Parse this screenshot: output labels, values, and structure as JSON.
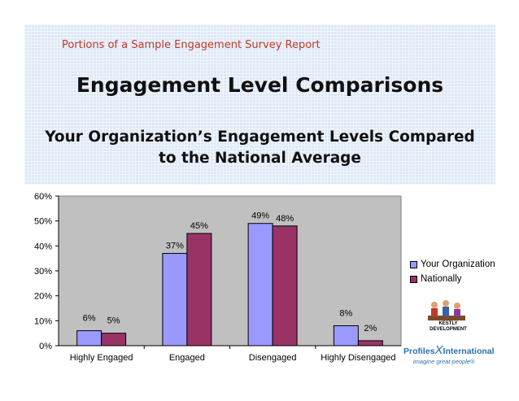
{
  "header": {
    "report_label": "Portions of a Sample Engagement Survey Report"
  },
  "slide": {
    "title": "Engagement Level Comparisons",
    "subtitle_line1": "Your Organization’s Engagement Levels Compared",
    "subtitle_line2": "to the National Average"
  },
  "colors": {
    "your_org": "#9999ff",
    "nationally": "#993366",
    "header_text": "#c0392b",
    "brand_blue": "#2a6fb0"
  },
  "chart_data": {
    "type": "bar",
    "categories": [
      "Highly Engaged",
      "Engaged",
      "Disengaged",
      "Highly Disengaged"
    ],
    "series": [
      {
        "name": "Your Organization",
        "values": [
          6,
          37,
          49,
          8
        ],
        "labels": [
          "6%",
          "37%",
          "49%",
          "8%"
        ],
        "color": "#9999ff"
      },
      {
        "name": "Nationally",
        "values": [
          5,
          45,
          48,
          2
        ],
        "labels": [
          "5%",
          "45%",
          "48%",
          "2%"
        ],
        "color": "#993366"
      }
    ],
    "ylim": [
      0,
      60
    ],
    "yticks": [
      0,
      10,
      20,
      30,
      40,
      50,
      60
    ],
    "ytick_labels": [
      "0%",
      "10%",
      "20%",
      "30%",
      "40%",
      "50%",
      "60%"
    ],
    "xlabel": "",
    "ylabel": "",
    "grid": false,
    "legend_position": "right"
  },
  "logo": {
    "kestly_line1": "KESTLY",
    "kestly_line2": "DEVELOPMENT",
    "profiles_left": "Profiles",
    "profiles_x": "X",
    "profiles_right": "International",
    "tagline": "imagine great people®"
  }
}
